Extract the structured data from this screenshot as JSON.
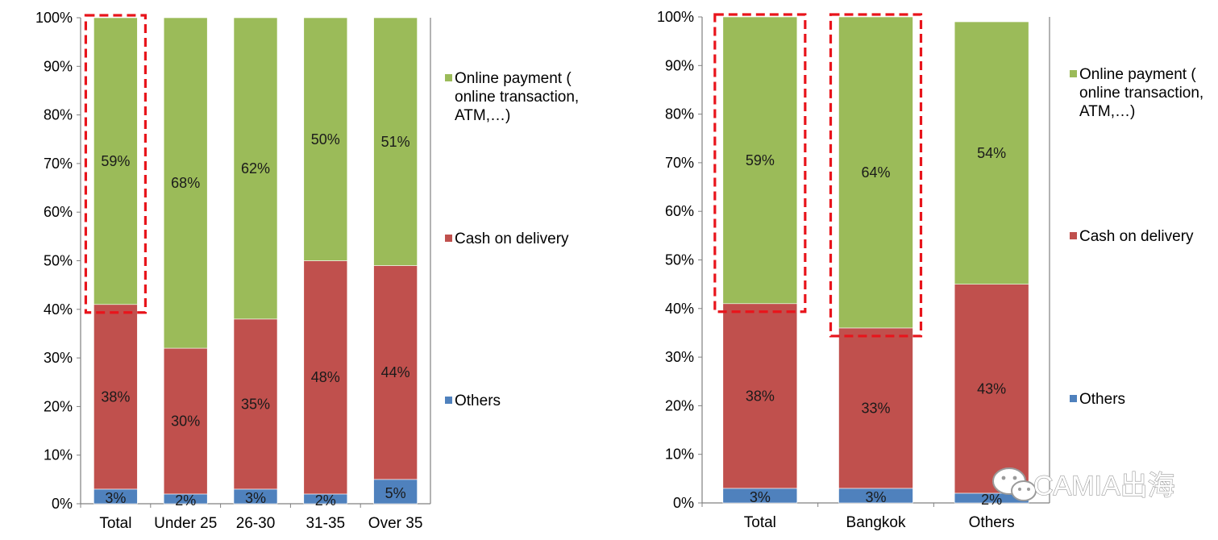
{
  "colors": {
    "online": "#9bbb59",
    "cash": "#c0504d",
    "others": "#4f81bd",
    "highlight": "#e8141b",
    "axis": "#808080"
  },
  "watermark": "CAMIA出海",
  "chart_data": [
    {
      "type": "bar",
      "stacked": true,
      "ylim": [
        0,
        100
      ],
      "yticks": [
        "0%",
        "10%",
        "20%",
        "30%",
        "40%",
        "50%",
        "60%",
        "70%",
        "80%",
        "90%",
        "100%"
      ],
      "categories": [
        "Total",
        "Under 25",
        "26-30",
        "31-35",
        "Over 35"
      ],
      "series": [
        {
          "name": "Others",
          "color": "#4f81bd",
          "values": [
            3,
            2,
            3,
            2,
            5
          ],
          "labels": [
            "3%",
            "2%",
            "3%",
            "2%",
            "5%"
          ]
        },
        {
          "name": "Cash on delivery",
          "color": "#c0504d",
          "values": [
            38,
            30,
            35,
            48,
            44
          ],
          "labels": [
            "38%",
            "30%",
            "35%",
            "48%",
            "44%"
          ]
        },
        {
          "name": "Online payment ( online transaction, ATM,…)",
          "color": "#9bbb59",
          "values": [
            59,
            68,
            62,
            50,
            51
          ],
          "labels": [
            "59%",
            "68%",
            "62%",
            "50%",
            "51%"
          ]
        }
      ],
      "legend": [
        {
          "lines": [
            "Online payment (",
            "online transaction,",
            "ATM,…)"
          ],
          "color": "#9bbb59"
        },
        {
          "lines": [
            "Cash on delivery"
          ],
          "color": "#c0504d"
        },
        {
          "lines": [
            "Others"
          ],
          "color": "#4f81bd"
        }
      ],
      "highlighted_categories": [
        "Total"
      ]
    },
    {
      "type": "bar",
      "stacked": true,
      "ylim": [
        0,
        100
      ],
      "yticks": [
        "0%",
        "10%",
        "20%",
        "30%",
        "40%",
        "50%",
        "60%",
        "70%",
        "80%",
        "90%",
        "100%"
      ],
      "categories": [
        "Total",
        "Bangkok",
        "Others"
      ],
      "series": [
        {
          "name": "Others",
          "color": "#4f81bd",
          "values": [
            3,
            3,
            2
          ],
          "labels": [
            "3%",
            "3%",
            "2%"
          ]
        },
        {
          "name": "Cash on delivery",
          "color": "#c0504d",
          "values": [
            38,
            33,
            43
          ],
          "labels": [
            "38%",
            "33%",
            "43%"
          ]
        },
        {
          "name": "Online payment ( online transaction, ATM,…)",
          "color": "#9bbb59",
          "values": [
            59,
            64,
            54
          ],
          "labels": [
            "59%",
            "64%",
            "54%"
          ]
        }
      ],
      "legend": [
        {
          "lines": [
            "Online payment (",
            "online transaction,",
            "ATM,…)"
          ],
          "color": "#9bbb59"
        },
        {
          "lines": [
            "Cash on delivery"
          ],
          "color": "#c0504d"
        },
        {
          "lines": [
            "Others"
          ],
          "color": "#4f81bd"
        }
      ],
      "highlighted_categories": [
        "Total",
        "Bangkok"
      ]
    }
  ]
}
